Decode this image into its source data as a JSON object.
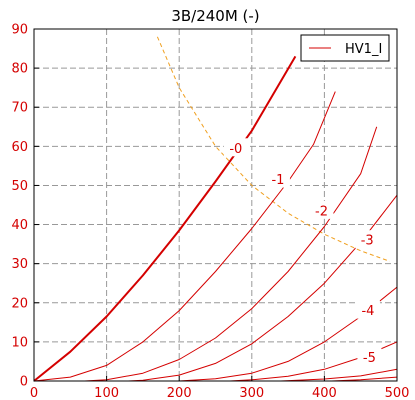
{
  "chart_data": {
    "type": "line",
    "title": "3B/240M (-)",
    "xlabel": "",
    "ylabel": "",
    "xlim": [
      0,
      500
    ],
    "ylim": [
      0,
      90
    ],
    "xticks": [
      0,
      100,
      200,
      300,
      400,
      500
    ],
    "yticks": [
      0,
      10,
      20,
      30,
      40,
      50,
      60,
      70,
      80,
      90
    ],
    "grid": true,
    "legend": {
      "position": "top-right",
      "entries": [
        "HV1_I"
      ]
    },
    "colors": {
      "curves": "#d40000",
      "dissipation": "#f0a020",
      "grid": "#999999",
      "axis_text": "#d40000"
    },
    "series": [
      {
        "grid_voltage": "-0",
        "x": [
          0,
          50,
          100,
          150,
          200,
          250,
          300,
          360
        ],
        "y": [
          0,
          7.5,
          16.5,
          27,
          38.5,
          51,
          64,
          83
        ]
      },
      {
        "grid_voltage": "-1",
        "x": [
          0,
          50,
          100,
          150,
          200,
          250,
          300,
          350,
          385,
          415
        ],
        "y": [
          0,
          1,
          4,
          10,
          18,
          28,
          39,
          51,
          60.5,
          74
        ]
      },
      {
        "grid_voltage": "-2",
        "x": [
          70,
          100,
          150,
          200,
          250,
          300,
          350,
          400,
          450,
          472
        ],
        "y": [
          0,
          0.3,
          2,
          5.5,
          11,
          18.5,
          28,
          39.5,
          53,
          65
        ]
      },
      {
        "grid_voltage": "-3",
        "x": [
          130,
          150,
          200,
          250,
          300,
          350,
          400,
          450,
          500
        ],
        "y": [
          0,
          0.2,
          1.5,
          4.5,
          9.5,
          16.5,
          25,
          35.5,
          47.5
        ]
      },
      {
        "grid_voltage": "-4",
        "x": [
          200,
          250,
          300,
          350,
          400,
          450,
          500
        ],
        "y": [
          0,
          0.6,
          2,
          5,
          10,
          16.5,
          24
        ]
      },
      {
        "grid_voltage": "-5",
        "x": [
          270,
          300,
          350,
          400,
          450,
          500
        ],
        "y": [
          0,
          0.3,
          1.2,
          3,
          6,
          10
        ]
      },
      {
        "grid_voltage": "",
        "x": [
          340,
          400,
          450,
          500
        ],
        "y": [
          0,
          0.5,
          1.3,
          3
        ]
      },
      {
        "grid_voltage": "",
        "x": [
          410,
          450,
          500
        ],
        "y": [
          0,
          0.3,
          1
        ]
      }
    ],
    "dissipation_curve": {
      "x": [
        170,
        200,
        250,
        300,
        350,
        400,
        450,
        490
      ],
      "y": [
        88,
        75,
        60,
        50,
        42.9,
        37.5,
        33.3,
        30.6
      ]
    },
    "curve_labels": [
      {
        "text": "-0",
        "x": 278,
        "y": 59.5
      },
      {
        "text": "-1",
        "x": 336,
        "y": 51.5
      },
      {
        "text": "-2",
        "x": 396,
        "y": 43.5
      },
      {
        "text": "-3",
        "x": 459,
        "y": 36
      },
      {
        "text": "-4",
        "x": 460,
        "y": 18
      },
      {
        "text": "-5",
        "x": 462,
        "y": 6
      }
    ]
  }
}
